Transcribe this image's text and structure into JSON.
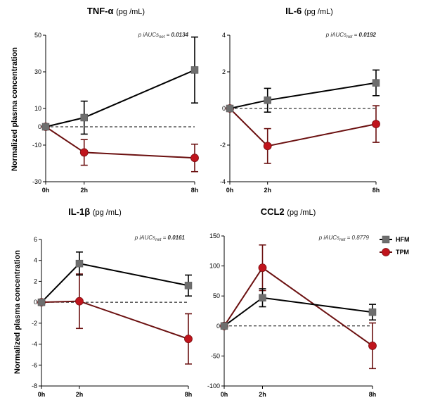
{
  "chart_data": [
    {
      "type": "line",
      "title": "TNF-α",
      "unit": "(pg /mL)",
      "stat": {
        "prefix": "p iAUCs",
        "sub": "net",
        "eq": " = ",
        "value": "0.0134",
        "bold": true
      },
      "ylabel": "Normalized plasma concentration",
      "x": [
        "0h",
        "2h",
        "8h"
      ],
      "ylim": [
        -30,
        50
      ],
      "yticks": [
        -30,
        -10,
        0,
        10,
        30,
        50
      ],
      "series": [
        {
          "name": "HFM",
          "values": [
            0,
            5,
            31
          ],
          "err": [
            0,
            9,
            18
          ]
        },
        {
          "name": "TPM",
          "values": [
            0,
            -14,
            -17
          ],
          "err": [
            0,
            7,
            7.5
          ]
        }
      ]
    },
    {
      "type": "line",
      "title": "IL-6",
      "unit": "(pg /mL)",
      "stat": {
        "prefix": "p iAUCs",
        "sub": "net",
        "eq": " = ",
        "value": "0.0192",
        "bold": true
      },
      "ylabel": "",
      "x": [
        "0h",
        "2h",
        "8h"
      ],
      "ylim": [
        -4,
        4
      ],
      "yticks": [
        -4,
        -2,
        0,
        2,
        4
      ],
      "series": [
        {
          "name": "HFM",
          "values": [
            0,
            0.45,
            1.4
          ],
          "err": [
            0,
            0.65,
            0.7
          ]
        },
        {
          "name": "TPM",
          "values": [
            0,
            -2.05,
            -0.85
          ],
          "err": [
            0,
            0.95,
            1.0
          ]
        }
      ]
    },
    {
      "type": "line",
      "title": "IL-1β",
      "unit": "(pg /mL)",
      "stat": {
        "prefix": "p iAUCs",
        "sub": "net",
        "eq": " = ",
        "value": "0.0161",
        "bold": true
      },
      "ylabel": "Normalized plasma concentration",
      "x": [
        "0h",
        "2h",
        "8h"
      ],
      "ylim": [
        -8,
        6
      ],
      "yticks": [
        -8,
        -6,
        -4,
        -2,
        0,
        2,
        4,
        6
      ],
      "series": [
        {
          "name": "HFM",
          "values": [
            0,
            3.7,
            1.6
          ],
          "err": [
            0,
            1.1,
            1.0
          ]
        },
        {
          "name": "TPM",
          "values": [
            0,
            0.1,
            -3.5
          ],
          "err": [
            0,
            2.6,
            2.4
          ]
        }
      ]
    },
    {
      "type": "line",
      "title": "CCL2",
      "unit": "(pg /mL)",
      "stat": {
        "prefix": "p iAUCs",
        "sub": "net",
        "eq": " = ",
        "value": "0.8779",
        "bold": false
      },
      "ylabel": "",
      "x": [
        "0h",
        "2h",
        "8h"
      ],
      "ylim": [
        -100,
        150
      ],
      "yticks": [
        -100,
        -50,
        0,
        50,
        100,
        150
      ],
      "series": [
        {
          "name": "HFM",
          "values": [
            0,
            47,
            23
          ],
          "err": [
            0,
            15,
            13
          ]
        },
        {
          "name": "TPM",
          "values": [
            0,
            97,
            -33
          ],
          "err": [
            0,
            38,
            38
          ]
        }
      ],
      "legend": {
        "position": "top-right",
        "entries": [
          "HFM",
          "TPM"
        ]
      }
    }
  ],
  "colors": {
    "HFM": "#000000",
    "HFM_marker": "#6e6e6e",
    "TPM": "#6b1010",
    "TPM_marker": "#c0141c",
    "zero_line": "#000000"
  }
}
